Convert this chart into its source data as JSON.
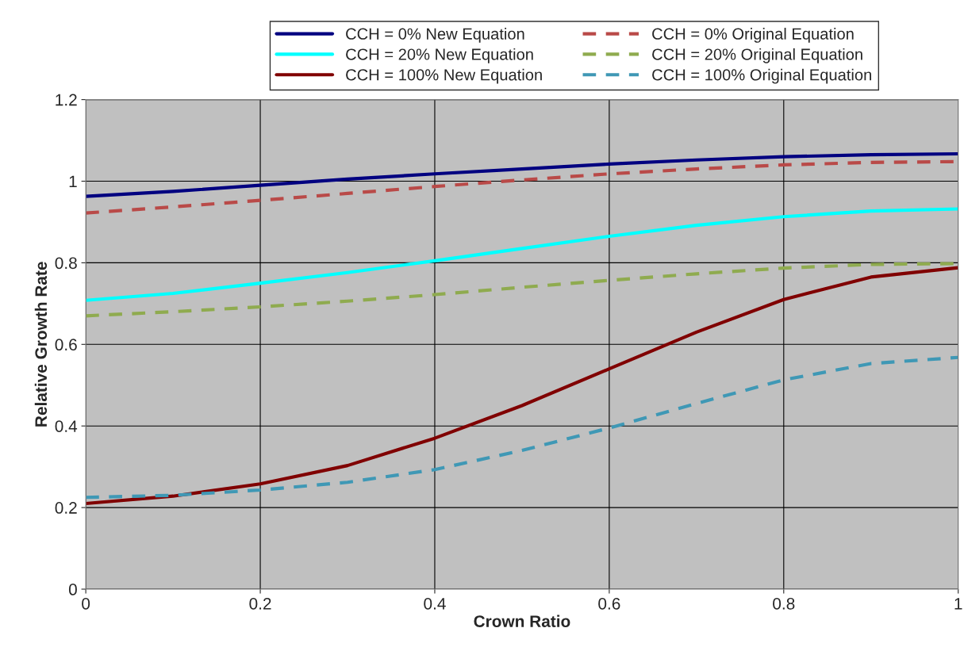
{
  "chart_data": {
    "type": "line",
    "xlabel": "Crown Ratio",
    "ylabel": "Relative Growth Rate",
    "x": [
      0,
      0.1,
      0.2,
      0.3,
      0.4,
      0.5,
      0.6,
      0.7,
      0.8,
      0.9,
      1.0
    ],
    "series": [
      {
        "name": "CCH = 0% New Equation",
        "color": "#000080",
        "line_style": "solid",
        "values": [
          0.963,
          0.975,
          0.99,
          1.005,
          1.018,
          1.03,
          1.042,
          1.052,
          1.06,
          1.065,
          1.067
        ]
      },
      {
        "name": "CCH = 20% New Equation",
        "color": "#00ffff",
        "line_style": "solid",
        "values": [
          0.708,
          0.725,
          0.75,
          0.776,
          0.805,
          0.835,
          0.865,
          0.892,
          0.913,
          0.927,
          0.932
        ]
      },
      {
        "name": "CCH = 100% New Equation",
        "color": "#800000",
        "line_style": "solid",
        "values": [
          0.21,
          0.228,
          0.258,
          0.303,
          0.37,
          0.45,
          0.54,
          0.63,
          0.71,
          0.765,
          0.788
        ]
      },
      {
        "name": "CCH = 0% Original Equation",
        "color": "#b94a48",
        "line_style": "dashed",
        "values": [
          0.922,
          0.937,
          0.953,
          0.97,
          0.987,
          1.003,
          1.018,
          1.03,
          1.04,
          1.046,
          1.048
        ]
      },
      {
        "name": "CCH = 20% Original Equation",
        "color": "#8fab4f",
        "line_style": "dashed",
        "values": [
          0.67,
          0.68,
          0.692,
          0.706,
          0.722,
          0.74,
          0.757,
          0.773,
          0.787,
          0.796,
          0.798
        ]
      },
      {
        "name": "CCH = 100% Original Equation",
        "color": "#3f98b5",
        "line_style": "dashed",
        "values": [
          0.225,
          0.23,
          0.243,
          0.262,
          0.293,
          0.34,
          0.395,
          0.455,
          0.513,
          0.553,
          0.568
        ]
      }
    ],
    "xlim": [
      0,
      1
    ],
    "xticks": [
      0,
      0.2,
      0.4,
      0.6,
      0.8,
      1
    ],
    "ylim": [
      0,
      1.2
    ],
    "yticks": [
      0,
      0.2,
      0.4,
      0.6,
      0.8,
      1,
      1.2
    ],
    "grid": true,
    "legend": "top",
    "marker": "none"
  }
}
